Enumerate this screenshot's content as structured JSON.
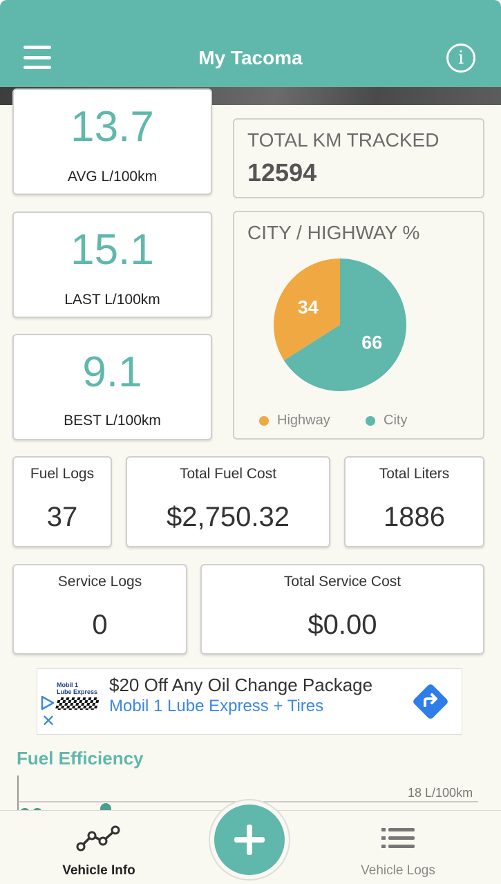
{
  "app": {
    "title": "My Tacoma",
    "accent_color": "#5fb8ab",
    "highway_color": "#f0a843"
  },
  "stats_left": [
    {
      "value": "13.7",
      "label": "AVG L/100km"
    },
    {
      "value": "15.1",
      "label": "LAST L/100km"
    },
    {
      "value": "9.1",
      "label": "BEST L/100km"
    }
  ],
  "total_km": {
    "title": "TOTAL KM TRACKED",
    "value": "12594"
  },
  "city_highway": {
    "title": "CITY / HIGHWAY %",
    "legend_highway": "Highway",
    "legend_city": "City"
  },
  "chart_data": {
    "type": "pie",
    "title": "CITY / HIGHWAY %",
    "categories": [
      "Highway",
      "City"
    ],
    "values": [
      34,
      66
    ],
    "colors": [
      "#f0a843",
      "#5fb8ab"
    ],
    "legend": "bottom"
  },
  "fuel_row": [
    {
      "label": "Fuel Logs",
      "value": "37"
    },
    {
      "label": "Total Fuel Cost",
      "value": "$2,750.32"
    },
    {
      "label": "Total Liters",
      "value": "1886"
    }
  ],
  "service_row": [
    {
      "label": "Service Logs",
      "value": "0"
    },
    {
      "label": "Total Service Cost",
      "value": "$0.00"
    }
  ],
  "ad": {
    "logo_text_1": "Mobil 1",
    "logo_text_2": "Lube Express",
    "headline": "$20 Off Any Oil Change Package",
    "subline": "Mobil 1 Lube Express + Tires"
  },
  "fuel_efficiency": {
    "title": "Fuel Efficiency",
    "axis_label": "18 L/100km"
  },
  "bottom_nav": {
    "vehicle_info": "Vehicle Info",
    "vehicle_logs": "Vehicle Logs"
  }
}
